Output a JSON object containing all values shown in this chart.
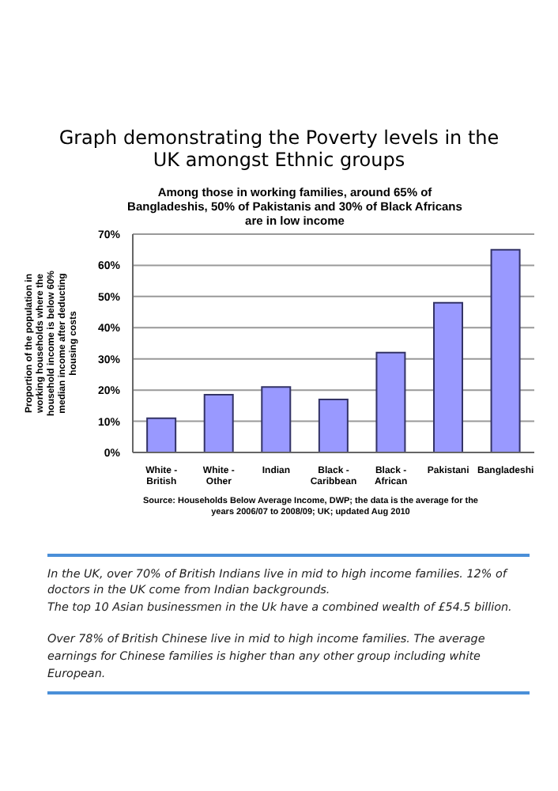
{
  "chart_data": {
    "type": "bar",
    "title": "Graph demonstrating the Poverty levels in the UK amongst Ethnic groups",
    "subtitle": "Among those in working families, around 65% of Bangladeshis, 50% of Pakistanis and 30% of Black Africans are in low income",
    "ylabel": "Proportion of the population in working households where the household income is below 60% median income after deducting housing costs",
    "categories": [
      "White - British",
      "White - Other",
      "Indian",
      "Black - Caribbean",
      "Black - African",
      "Pakistani",
      "Bangladeshi"
    ],
    "values": [
      11,
      18.5,
      21,
      17,
      32,
      48,
      65
    ],
    "color": "#9999ff",
    "ylim": [
      0,
      70
    ],
    "yticks": [
      {
        "value": 0,
        "label": "0%"
      },
      {
        "value": 10,
        "label": "10%"
      },
      {
        "value": 20,
        "label": "20%"
      },
      {
        "value": 30,
        "label": "30%"
      },
      {
        "value": 40,
        "label": "40%"
      },
      {
        "value": 50,
        "label": "50%"
      },
      {
        "value": 60,
        "label": "60%"
      },
      {
        "value": 70,
        "label": "70%"
      }
    ],
    "grid": "y",
    "annotations": [
      "Source: Households Below Average Income, DWP; the data is the average for the years 2006/07 to 2008/09; UK; updated Aug 2010",
      "In the UK, over 70% of British Indians live in mid to high income families. 12% of doctors in the UK come from Indian backgrounds.",
      "The top 10 Asian businessmen in the Uk have a combined wealth of £54.5 billion.",
      "Over 78% of British Chinese live in mid to high income families. The average earnings for Chinese families is higher than any other group including white European."
    ]
  }
}
